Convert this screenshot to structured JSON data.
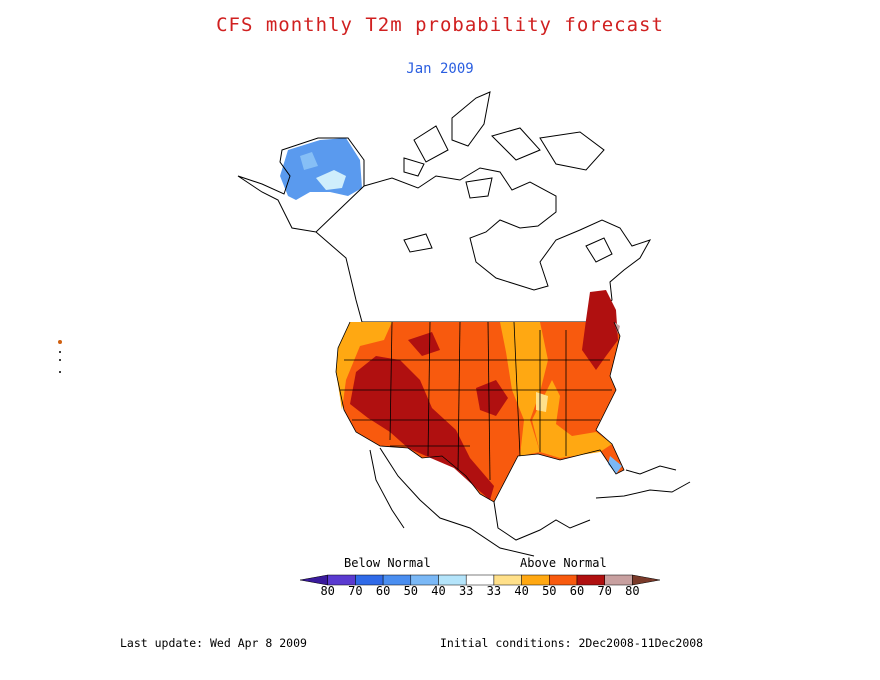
{
  "title": "CFS monthly T2m probability forecast",
  "subtitle": "Jan 2009",
  "legend": {
    "below_label": "Below Normal",
    "above_label": "Above Normal",
    "ticks": [
      "80",
      "70",
      "60",
      "50",
      "40",
      "33",
      "33",
      "40",
      "50",
      "60",
      "70",
      "80"
    ],
    "colors": [
      "#3a1a9c",
      "#5a3ad0",
      "#2f6ae8",
      "#4a8ef0",
      "#7ab8f6",
      "#b4e4fa",
      "#ffffff",
      "#ffe08a",
      "#ffa812",
      "#f85a0e",
      "#b01010",
      "#c8a0a0",
      "#7a3a2a"
    ]
  },
  "footer": {
    "last_update": "Last update: Wed Apr 8 2009",
    "initial_conditions": "Initial conditions: 2Dec2008-11Dec2008"
  }
}
